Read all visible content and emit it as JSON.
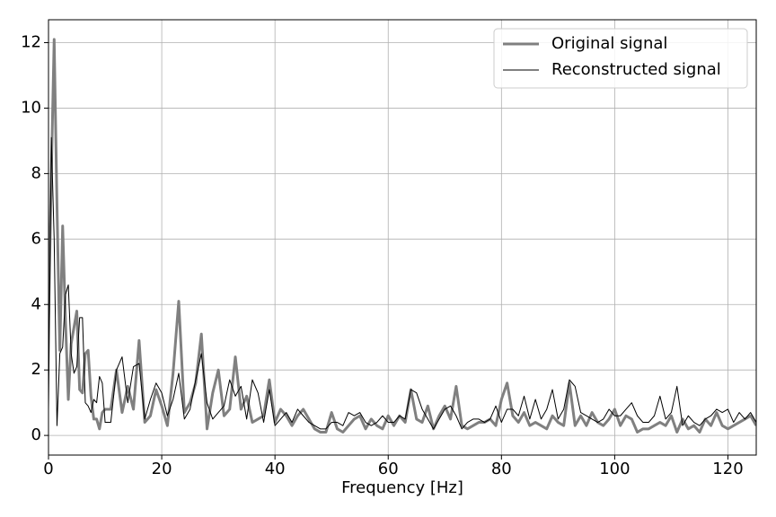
{
  "chart_data": {
    "type": "line",
    "xlabel": "Frequency [Hz]",
    "x": [
      0,
      0.5,
      1,
      1.5,
      2,
      2.5,
      3,
      3.5,
      4,
      4.5,
      5,
      5.5,
      6,
      6.5,
      7,
      7.5,
      8,
      8.5,
      9,
      9.5,
      10,
      11,
      12,
      13,
      14,
      15,
      16,
      17,
      18,
      19,
      20,
      21,
      22,
      23,
      24,
      25,
      26,
      27,
      28,
      29,
      30,
      31,
      32,
      33,
      34,
      35,
      36,
      37,
      38,
      39,
      40,
      41,
      42,
      43,
      44,
      45,
      46,
      47,
      48,
      49,
      50,
      51,
      52,
      53,
      54,
      55,
      56,
      57,
      58,
      59,
      60,
      61,
      62,
      63,
      64,
      65,
      66,
      67,
      68,
      69,
      70,
      71,
      72,
      73,
      74,
      75,
      76,
      77,
      78,
      79,
      80,
      81,
      82,
      83,
      84,
      85,
      86,
      87,
      88,
      89,
      90,
      91,
      92,
      93,
      94,
      95,
      96,
      97,
      98,
      99,
      100,
      101,
      102,
      103,
      104,
      105,
      106,
      107,
      108,
      109,
      110,
      111,
      112,
      113,
      114,
      115,
      116,
      117,
      118,
      119,
      120,
      121,
      122,
      123,
      124,
      125
    ],
    "series": [
      {
        "name": "Original signal",
        "color": "#808080",
        "width": 3,
        "values": [
          3.5,
          8,
          12.1,
          7,
          2.6,
          6.4,
          3.5,
          1.1,
          2.8,
          3.3,
          3.8,
          1.4,
          1.3,
          2.5,
          2.6,
          1.2,
          0.5,
          0.5,
          0.2,
          0.7,
          0.8,
          0.8,
          2.0,
          0.7,
          1.5,
          0.8,
          2.9,
          0.4,
          0.6,
          1.4,
          0.9,
          0.3,
          1.9,
          4.1,
          0.7,
          1.0,
          1.6,
          3.1,
          0.2,
          1.3,
          2.0,
          0.6,
          0.8,
          2.4,
          0.8,
          1.2,
          0.4,
          0.5,
          0.6,
          1.7,
          0.4,
          0.8,
          0.6,
          0.3,
          0.6,
          0.8,
          0.5,
          0.2,
          0.1,
          0.1,
          0.7,
          0.2,
          0.1,
          0.3,
          0.5,
          0.6,
          0.2,
          0.5,
          0.3,
          0.2,
          0.6,
          0.3,
          0.6,
          0.4,
          1.4,
          0.5,
          0.4,
          0.9,
          0.2,
          0.6,
          0.9,
          0.5,
          1.5,
          0.3,
          0.2,
          0.3,
          0.4,
          0.4,
          0.5,
          0.3,
          1.1,
          1.6,
          0.6,
          0.4,
          0.7,
          0.3,
          0.4,
          0.3,
          0.2,
          0.6,
          0.4,
          0.3,
          1.6,
          0.3,
          0.6,
          0.3,
          0.7,
          0.4,
          0.3,
          0.5,
          0.8,
          0.3,
          0.6,
          0.5,
          0.1,
          0.2,
          0.2,
          0.3,
          0.4,
          0.3,
          0.6,
          0.1,
          0.5,
          0.2,
          0.3,
          0.1,
          0.5,
          0.3,
          0.7,
          0.3,
          0.2,
          0.3,
          0.4,
          0.5,
          0.6,
          0.3
        ]
      },
      {
        "name": "Reconstructed signal",
        "color": "#000000",
        "width": 1,
        "values": [
          0.8,
          9.1,
          6,
          0.3,
          2.5,
          2.7,
          4.3,
          4.6,
          2.5,
          1.9,
          2.1,
          3.6,
          3.6,
          1.0,
          0.9,
          0.7,
          1.1,
          1.0,
          1.8,
          1.6,
          0.4,
          0.4,
          2.0,
          2.4,
          1.0,
          2.1,
          2.2,
          0.5,
          1.1,
          1.6,
          1.3,
          0.6,
          1.1,
          1.9,
          0.5,
          0.8,
          1.7,
          2.5,
          1.0,
          0.5,
          0.7,
          0.9,
          1.7,
          1.2,
          1.5,
          0.5,
          1.7,
          1.3,
          0.4,
          1.4,
          0.3,
          0.5,
          0.7,
          0.4,
          0.8,
          0.6,
          0.4,
          0.3,
          0.2,
          0.2,
          0.4,
          0.4,
          0.3,
          0.7,
          0.6,
          0.7,
          0.4,
          0.3,
          0.4,
          0.6,
          0.4,
          0.4,
          0.6,
          0.5,
          1.4,
          1.3,
          0.8,
          0.5,
          0.2,
          0.5,
          0.8,
          0.9,
          0.6,
          0.2,
          0.4,
          0.5,
          0.5,
          0.4,
          0.5,
          0.9,
          0.4,
          0.8,
          0.8,
          0.6,
          1.2,
          0.5,
          1.1,
          0.5,
          0.8,
          1.4,
          0.5,
          0.8,
          1.7,
          1.5,
          0.7,
          0.6,
          0.5,
          0.4,
          0.5,
          0.8,
          0.6,
          0.6,
          0.8,
          1.0,
          0.6,
          0.4,
          0.4,
          0.6,
          1.2,
          0.5,
          0.7,
          1.5,
          0.3,
          0.6,
          0.4,
          0.3,
          0.5,
          0.6,
          0.8,
          0.7,
          0.8,
          0.4,
          0.7,
          0.5,
          0.7,
          0.4
        ]
      }
    ],
    "xlim": [
      0,
      125
    ],
    "ylim": [
      -0.6,
      12.7
    ],
    "xticks": [
      0,
      20,
      40,
      60,
      80,
      100,
      120
    ],
    "yticks": [
      0,
      2,
      4,
      6,
      8,
      10,
      12
    ],
    "grid": true,
    "legend": "upper right"
  }
}
